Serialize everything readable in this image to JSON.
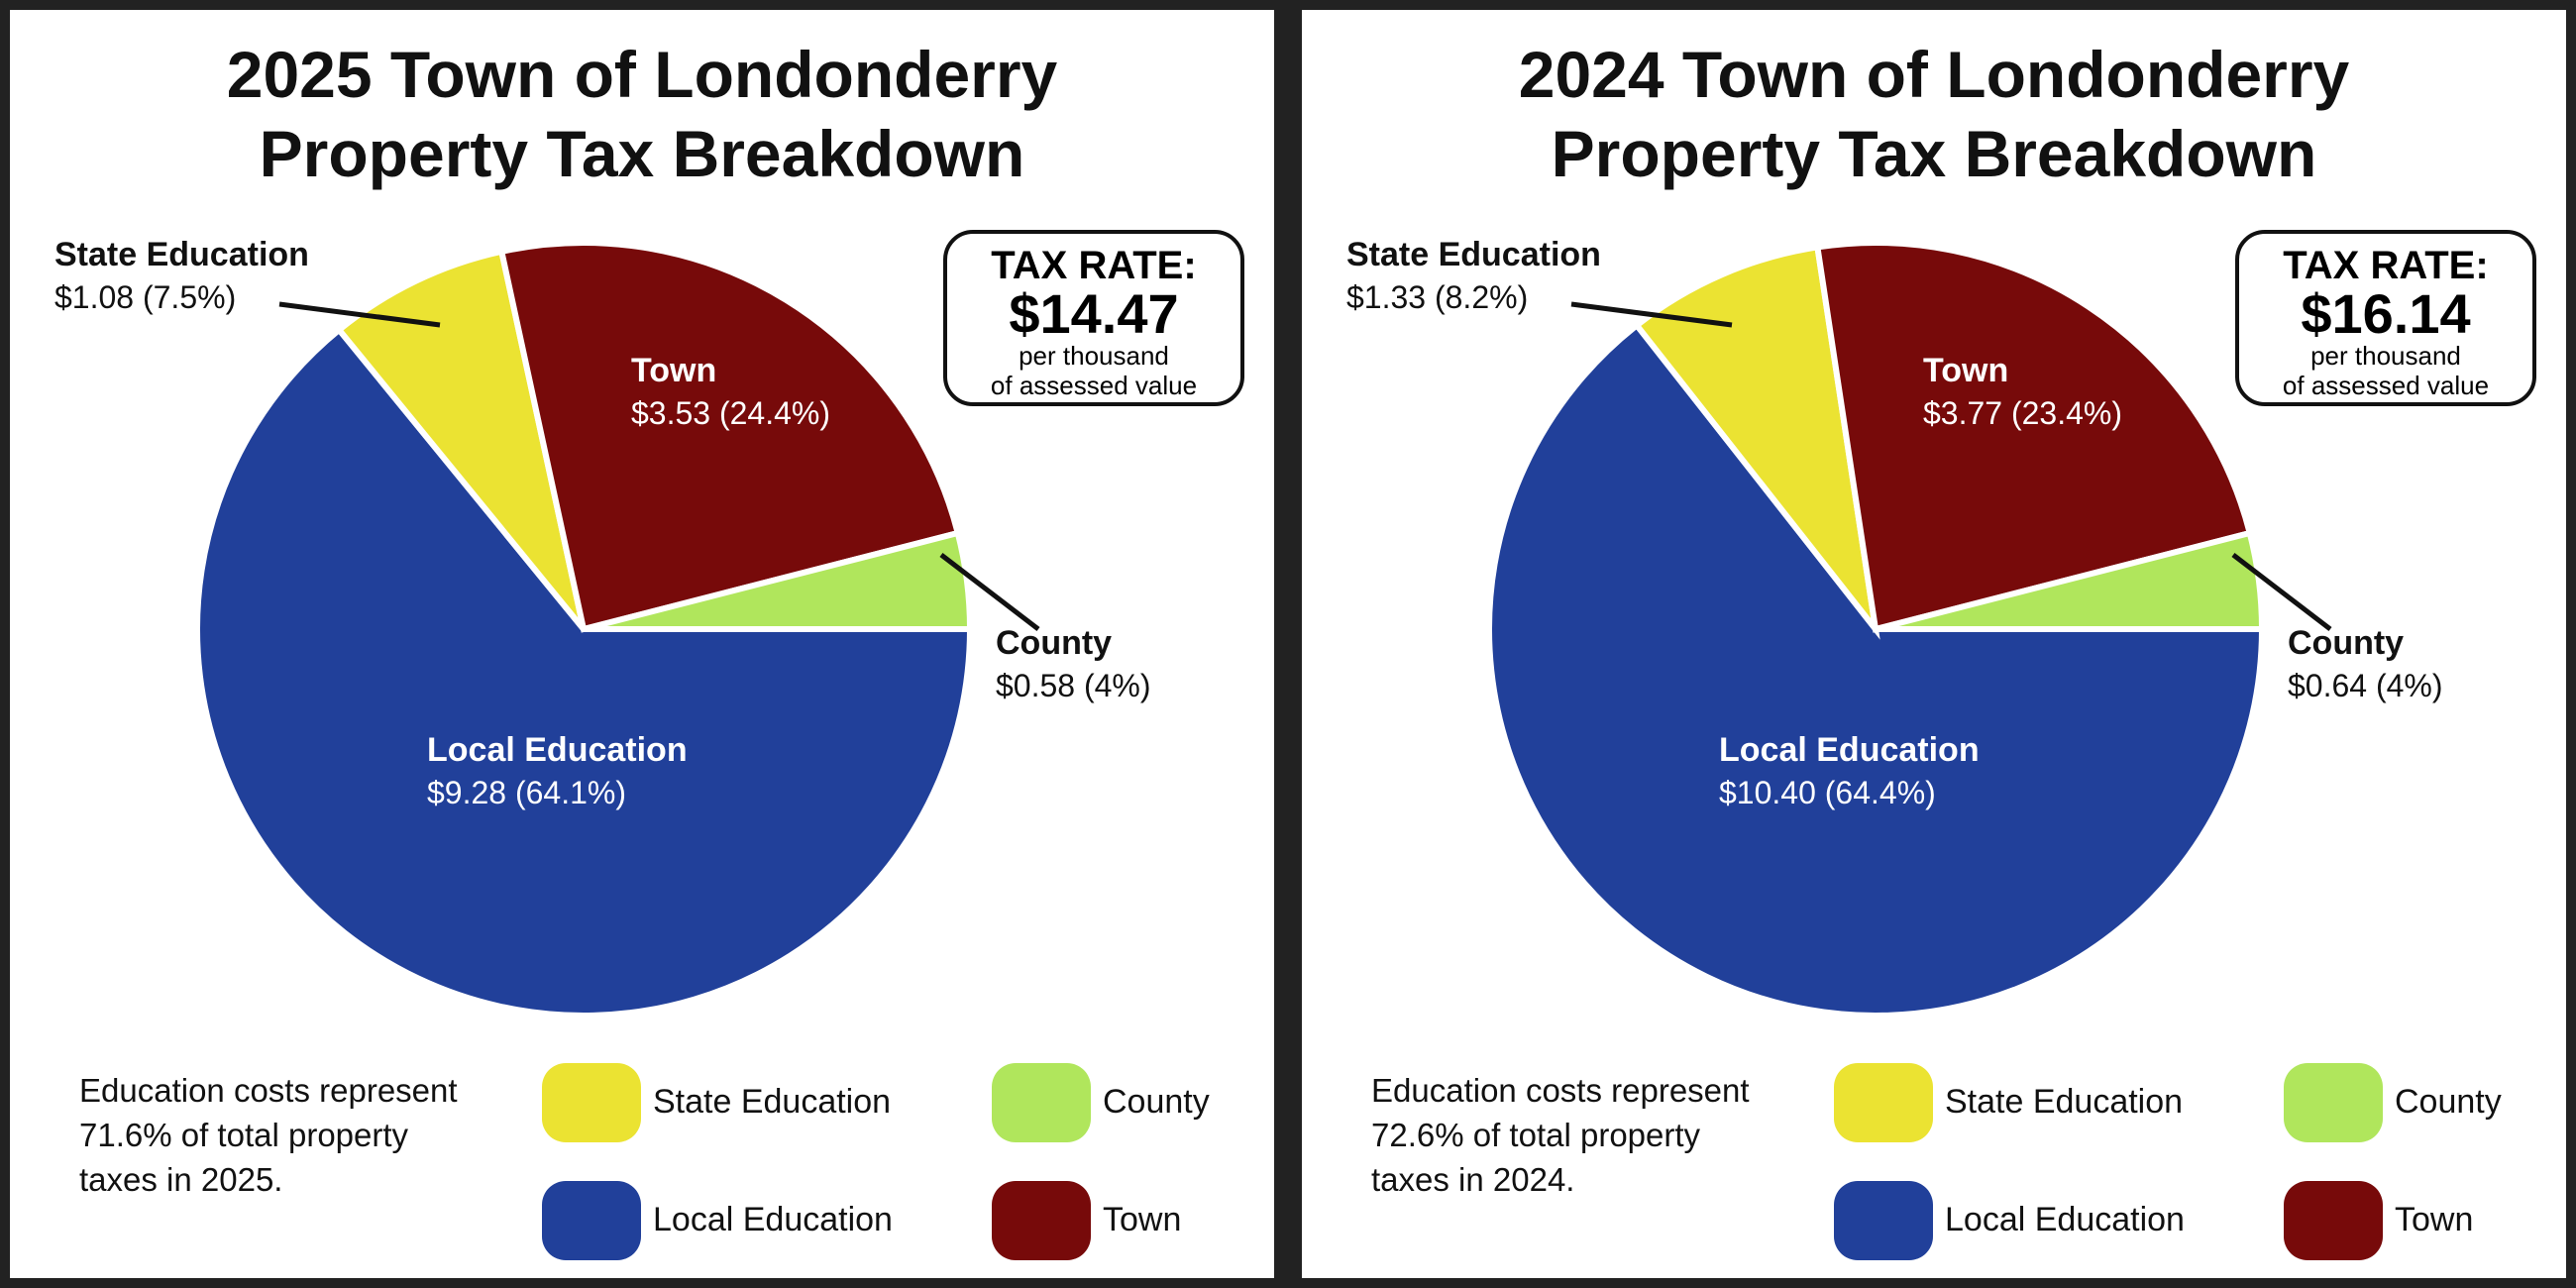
{
  "chart_data": [
    {
      "type": "pie",
      "title": [
        "2025 Town of Londonderry",
        "Property Tax Breakdown"
      ],
      "tax_rate": {
        "label": "TAX RATE:",
        "value": "$14.47",
        "unit_line1": "per thousand",
        "unit_line2": "of assessed value"
      },
      "slices": [
        {
          "name": "Local Education",
          "value": 9.28,
          "percent": 64.1,
          "value_label": "$9.28 (64.1%)",
          "color": "#21409a"
        },
        {
          "name": "State Education",
          "value": 1.08,
          "percent": 7.5,
          "value_label": "$1.08 (7.5%)",
          "color": "#ebe332"
        },
        {
          "name": "Town",
          "value": 3.53,
          "percent": 24.4,
          "value_label": "$3.53 (24.4%)",
          "color": "#770a0a"
        },
        {
          "name": "County",
          "value": 0.58,
          "percent": 4,
          "value_label": "$0.58 (4%)",
          "color": "#b0e65c"
        }
      ],
      "note": "Education costs represent 71.6% of total property taxes in 2025.",
      "legend": [
        "State Education",
        "County",
        "Local Education",
        "Town"
      ]
    },
    {
      "type": "pie",
      "title": [
        "2024 Town of Londonderry",
        "Property Tax Breakdown"
      ],
      "tax_rate": {
        "label": "TAX RATE:",
        "value": "$16.14",
        "unit_line1": "per thousand",
        "unit_line2": "of assessed value"
      },
      "slices": [
        {
          "name": "Local Education",
          "value": 10.4,
          "percent": 64.4,
          "value_label": "$10.40 (64.4%)",
          "color": "#21409a"
        },
        {
          "name": "State Education",
          "value": 1.33,
          "percent": 8.2,
          "value_label": "$1.33 (8.2%)",
          "color": "#ebe332"
        },
        {
          "name": "Town",
          "value": 3.77,
          "percent": 23.4,
          "value_label": "$3.77 (23.4%)",
          "color": "#770a0a"
        },
        {
          "name": "County",
          "value": 0.64,
          "percent": 4,
          "value_label": "$0.64 (4%)",
          "color": "#b0e65c"
        }
      ],
      "note": "Education costs represent 72.6% of total property taxes in 2024.",
      "legend": [
        "State Education",
        "County",
        "Local Education",
        "Town"
      ]
    }
  ]
}
